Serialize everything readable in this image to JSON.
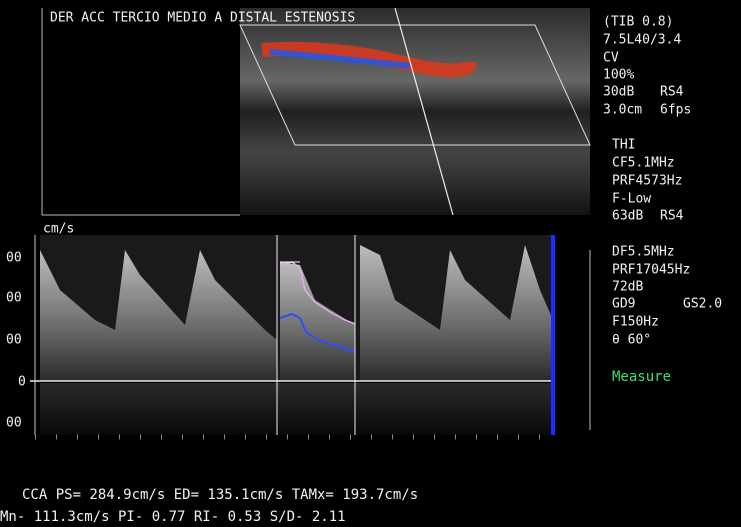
{
  "header": {
    "title": "DER ACC TERCIO MEDIO A DISTAL ESTENOSIS"
  },
  "panel": {
    "bmode": [
      "(TIB 0.8)",
      "7.5L40/3.4",
      "CV",
      "100%",
      "30dB",
      "RS4",
      "3.0cm",
      "6fps"
    ],
    "color": [
      "THI",
      "CF5.1MHz",
      "PRF4573Hz",
      "F-Low",
      "63dB",
      "RS4"
    ],
    "doppler": [
      "DF5.5MHz",
      "PRF17045Hz",
      "72dB",
      "GD9",
      "GS2.0",
      "F150Hz",
      "θ 60°"
    ],
    "action": "Measure"
  },
  "scale": {
    "unit": "cm/s",
    "labels": [
      "00",
      "00",
      "00",
      "0",
      "00"
    ]
  },
  "results": {
    "line1": "CCA PS= 284.9cm/s ED= 135.1cm/s TAMx= 193.7cm/s",
    "line2": "Mn- 111.3cm/s PI- 0.77 RI- 0.53 S/D- 2.11"
  }
}
